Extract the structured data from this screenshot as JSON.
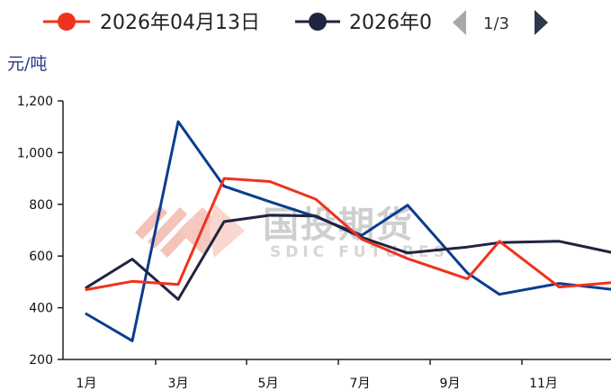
{
  "legend": {
    "items": [
      {
        "label": "2026年04月13日",
        "color": "#f0321e"
      },
      {
        "label": "2026年0",
        "color": "#1f2440"
      }
    ],
    "pager": "1/3"
  },
  "watermark": {
    "main": "国投期货",
    "sub": "SDIC FUTURES"
  },
  "chart_data": {
    "type": "line",
    "unit": "元/吨",
    "x_tick_labels": [
      "1月",
      "3月",
      "5月",
      "7月",
      "9月",
      "11月"
    ],
    "ylim": [
      200,
      1200
    ],
    "y_ticks": [
      200,
      400,
      600,
      800,
      1000,
      1200
    ],
    "y_tick_labels": [
      "200",
      "400",
      "600",
      "800",
      "1,000",
      "1,200"
    ],
    "grid": false,
    "legend_position": "top",
    "series": [
      {
        "name": "2026年04月13日",
        "color": "#f0321e",
        "points": [
          [
            1.0,
            470
          ],
          [
            2.0,
            502
          ],
          [
            3.0,
            490
          ],
          [
            4.0,
            900
          ],
          [
            5.0,
            888
          ],
          [
            6.0,
            820
          ],
          [
            7.0,
            665
          ],
          [
            8.0,
            590
          ],
          [
            9.3,
            512
          ],
          [
            10.0,
            657
          ],
          [
            11.3,
            480
          ],
          [
            12.5,
            498
          ]
        ]
      },
      {
        "name": "2026年0",
        "color": "#1f2440",
        "points": [
          [
            1.0,
            478
          ],
          [
            2.0,
            588
          ],
          [
            3.0,
            432
          ],
          [
            4.0,
            733
          ],
          [
            5.0,
            758
          ],
          [
            6.0,
            755
          ],
          [
            7.0,
            672
          ],
          [
            8.0,
            612
          ],
          [
            9.3,
            635
          ],
          [
            10.0,
            652
          ],
          [
            11.3,
            657
          ],
          [
            12.5,
            612
          ]
        ]
      },
      {
        "name": "",
        "color": "#0b3c8f",
        "points": [
          [
            1.0,
            376
          ],
          [
            2.0,
            272
          ],
          [
            3.0,
            1120
          ],
          [
            4.0,
            870
          ],
          [
            5.0,
            810
          ],
          [
            6.0,
            752
          ],
          [
            7.0,
            680
          ],
          [
            8.0,
            797
          ],
          [
            9.3,
            535
          ],
          [
            10.0,
            452
          ],
          [
            11.3,
            494
          ],
          [
            12.5,
            470
          ]
        ]
      }
    ]
  }
}
